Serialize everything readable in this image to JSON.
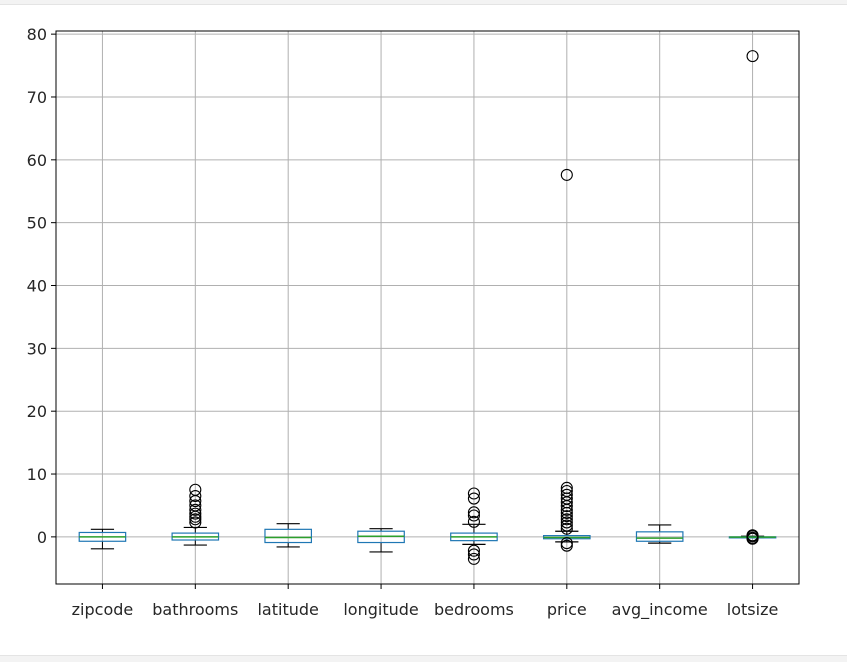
{
  "chart_data": {
    "type": "boxplot",
    "title": "",
    "xlabel": "",
    "ylabel": "",
    "ylim": [
      -7.5,
      80.5
    ],
    "yticks": [
      0,
      10,
      20,
      30,
      40,
      50,
      60,
      70,
      80
    ],
    "grid": true,
    "colors": {
      "box": "#1f77b4",
      "median": "#2ca02c",
      "whisker": "#000000",
      "grid": "#b0b0b0",
      "flier": "#000000"
    },
    "categories": [
      "zipcode",
      "bathrooms",
      "latitude",
      "longitude",
      "bedrooms",
      "price",
      "avg_income",
      "lotsize"
    ],
    "boxes": [
      {
        "name": "zipcode",
        "whislo": -1.9,
        "q1": -0.7,
        "med": 0.0,
        "q3": 0.7,
        "whishi": 1.2,
        "fliers": []
      },
      {
        "name": "bathrooms",
        "whislo": -1.3,
        "q1": -0.5,
        "med": 0.0,
        "q3": 0.6,
        "whishi": 1.5,
        "fliers": [
          2.3,
          2.8,
          3.2,
          3.7,
          4.3,
          5.0,
          5.7,
          6.5,
          7.5
        ]
      },
      {
        "name": "latitude",
        "whislo": -1.6,
        "q1": -0.9,
        "med": -0.1,
        "q3": 1.2,
        "whishi": 2.1,
        "fliers": []
      },
      {
        "name": "longitude",
        "whislo": -2.4,
        "q1": -0.9,
        "med": 0.1,
        "q3": 0.9,
        "whishi": 1.3,
        "fliers": []
      },
      {
        "name": "bedrooms",
        "whislo": -1.2,
        "q1": -0.6,
        "med": 0.0,
        "q3": 0.6,
        "whishi": 2.0,
        "fliers": [
          2.4,
          3.4,
          3.9,
          6.1,
          6.9,
          -2.2,
          -2.8,
          -3.5
        ]
      },
      {
        "name": "price",
        "whislo": -0.8,
        "q1": -0.3,
        "med": -0.1,
        "q3": 0.2,
        "whishi": 0.9,
        "fliers": [
          1.3,
          1.8,
          2.3,
          2.8,
          3.3,
          3.8,
          4.3,
          4.9,
          5.5,
          6.1,
          6.7,
          7.3,
          7.8,
          -1.0,
          -1.4,
          57.6
        ]
      },
      {
        "name": "avg_income",
        "whislo": -1.0,
        "q1": -0.7,
        "med": -0.2,
        "q3": 0.8,
        "whishi": 1.9,
        "fliers": []
      },
      {
        "name": "lotsize",
        "whislo": -0.15,
        "q1": -0.1,
        "med": -0.05,
        "q3": 0.0,
        "whishi": 0.1,
        "fliers": [
          0.1,
          0.25,
          -0.15,
          -0.3,
          76.5
        ]
      }
    ]
  }
}
